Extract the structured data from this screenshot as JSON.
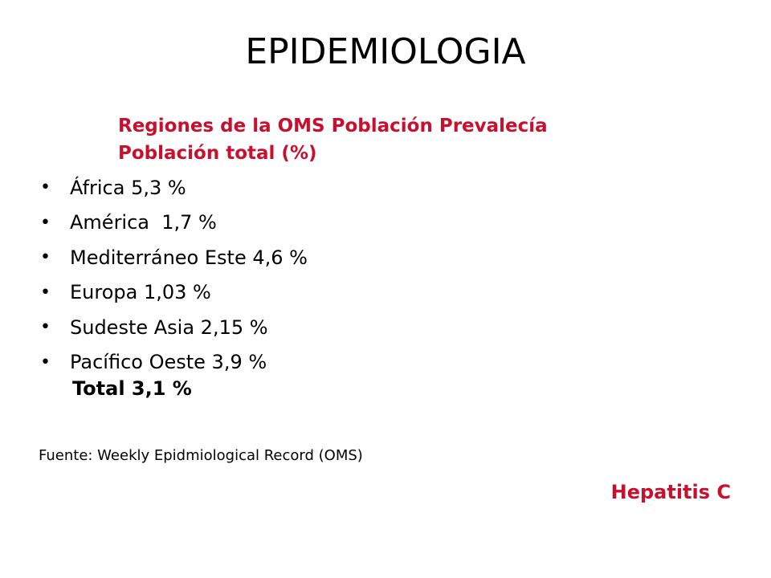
{
  "slide": {
    "title": "EPIDEMIOLOGIA",
    "subtitle_line1": "Regiones de la OMS Población Prevalecía",
    "subtitle_line2": "Población total (%)",
    "items": [
      {
        "bullet": "•",
        "text": "África 5,3 %"
      },
      {
        "bullet": "•",
        "text": "América  1,7 %"
      },
      {
        "bullet": "•",
        "text": "Mediterráneo Este 4,6 %"
      },
      {
        "bullet": "•",
        "text": "Europa 1,03 %"
      },
      {
        "bullet": "•",
        "text": "Sudeste Asia 2,15 %"
      },
      {
        "bullet": "•",
        "text": "Pacífico Oeste 3,9 %"
      }
    ],
    "total": "Total 3,1 %",
    "source": "Fuente: Weekly Epidmiological Record (OMS)",
    "disease": "Hepatitis C"
  },
  "colors": {
    "accent": "#c8102e",
    "text": "#000000",
    "background": "#ffffff"
  }
}
